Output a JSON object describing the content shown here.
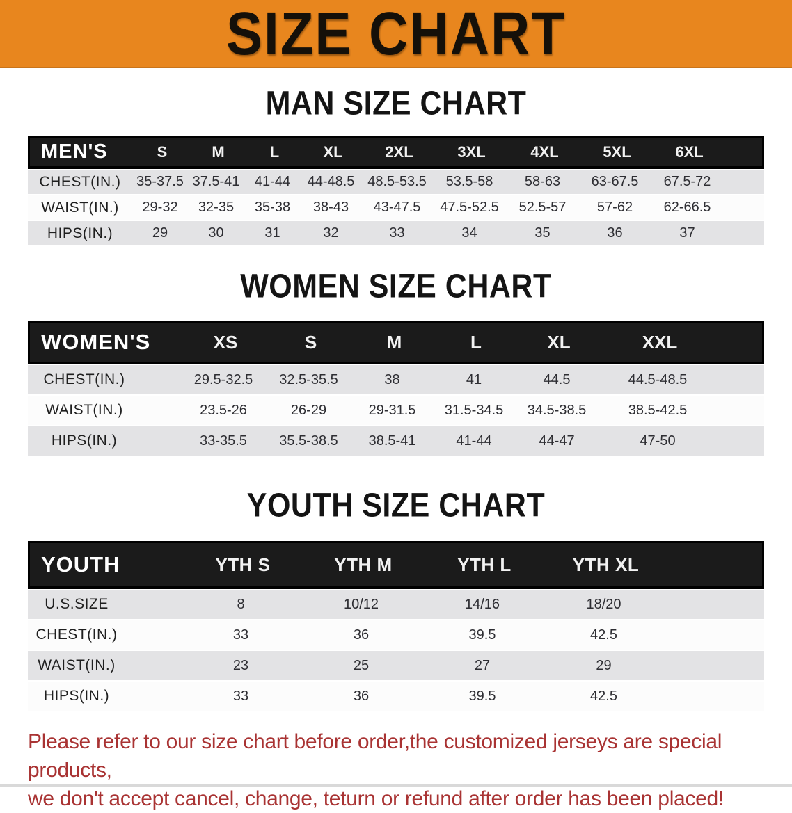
{
  "banner": {
    "title": "SIZE CHART"
  },
  "colors": {
    "banner_bg": "#E8861E",
    "banner_text": "#151009",
    "table_header_bg": "#1B1B1B",
    "table_header_text": "#FFFFFF",
    "row_stripe": "#E3E3E5",
    "row_white": "#FCFCFC",
    "footer_text": "#A93333"
  },
  "sections": [
    {
      "id": "mens",
      "heading": "MAN SIZE CHART",
      "table": {
        "corner_label": "MEN'S",
        "sizes": [
          "S",
          "M",
          "L",
          "XL",
          "2XL",
          "3XL",
          "4XL",
          "5XL",
          "6XL"
        ],
        "rows": [
          {
            "label": "CHEST(IN.)",
            "values": [
              "35-37.5",
              "37.5-41",
              "41-44",
              "44-48.5",
              "48.5-53.5",
              "53.5-58",
              "58-63",
              "63-67.5",
              "67.5-72"
            ]
          },
          {
            "label": "WAIST(IN.)",
            "values": [
              "29-32",
              "32-35",
              "35-38",
              "38-43",
              "43-47.5",
              "47.5-52.5",
              "52.5-57",
              "57-62",
              "62-66.5"
            ]
          },
          {
            "label": "HIPS(IN.)",
            "values": [
              "29",
              "30",
              "31",
              "32",
              "33",
              "34",
              "35",
              "36",
              "37"
            ]
          }
        ]
      }
    },
    {
      "id": "womens",
      "heading": "WOMEN SIZE CHART",
      "table": {
        "corner_label": "WOMEN'S",
        "sizes": [
          "XS",
          "S",
          "M",
          "L",
          "XL",
          "XXL"
        ],
        "rows": [
          {
            "label": "CHEST(IN.)",
            "values": [
              "29.5-32.5",
              "32.5-35.5",
              "38",
              "41",
              "44.5",
              "44.5-48.5"
            ]
          },
          {
            "label": "WAIST(IN.)",
            "values": [
              "23.5-26",
              "26-29",
              "29-31.5",
              "31.5-34.5",
              "34.5-38.5",
              "38.5-42.5"
            ]
          },
          {
            "label": "HIPS(IN.)",
            "values": [
              "33-35.5",
              "35.5-38.5",
              "38.5-41",
              "41-44",
              "44-47",
              "47-50"
            ]
          }
        ]
      }
    },
    {
      "id": "youth",
      "heading": "YOUTH SIZE CHART",
      "table": {
        "corner_label": "YOUTH",
        "sizes": [
          "YTH S",
          "YTH M",
          "YTH L",
          "YTH XL"
        ],
        "rows": [
          {
            "label": "U.S.SIZE",
            "values": [
              "8",
              "10/12",
              "14/16",
              "18/20"
            ]
          },
          {
            "label": "CHEST(IN.)",
            "values": [
              "33",
              "36",
              "39.5",
              "42.5"
            ]
          },
          {
            "label": "WAIST(IN.)",
            "values": [
              "23",
              "25",
              "27",
              "29"
            ]
          },
          {
            "label": "HIPS(IN.)",
            "values": [
              "33",
              "36",
              "39.5",
              "42.5"
            ]
          }
        ]
      }
    }
  ],
  "footer": {
    "line1": "Please refer to our size chart before order,the customized jerseys are special products,",
    "line2": "we don't accept cancel, change, teturn or refund after order has been placed!"
  }
}
